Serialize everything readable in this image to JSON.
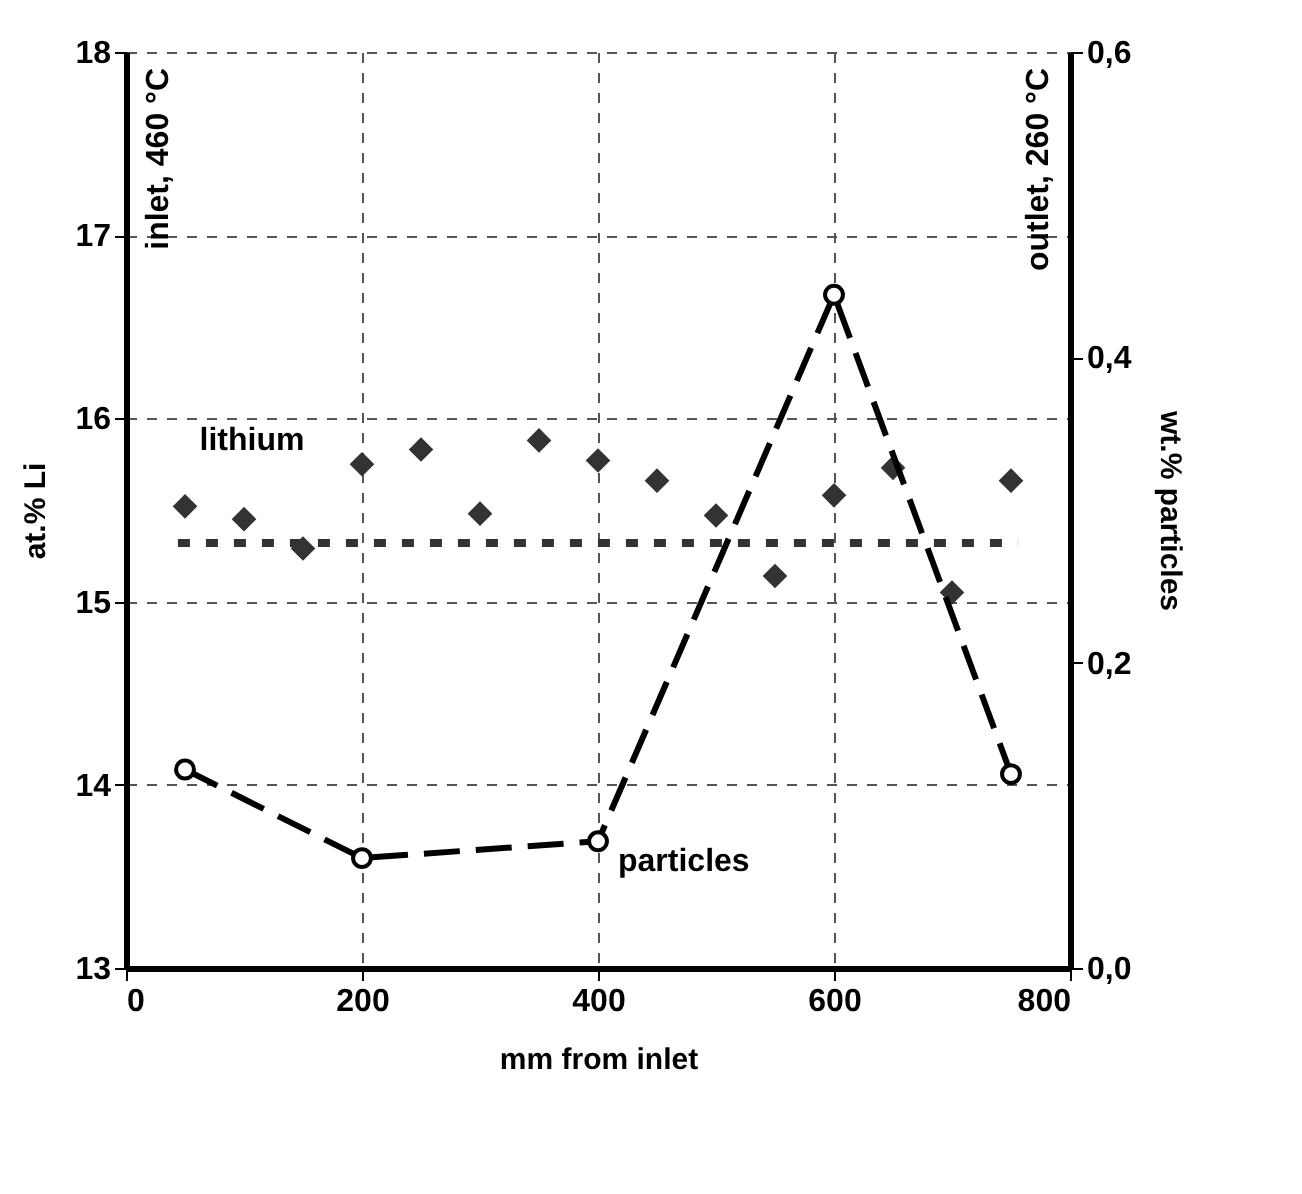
{
  "chart_data": {
    "type": "scatter",
    "xlabel": "mm from inlet",
    "ylabel": "at.% Li",
    "y2label": "wt.% particles",
    "xlim": [
      0,
      800
    ],
    "xticks": [
      0,
      200,
      400,
      600,
      800
    ],
    "ylim": [
      13,
      18
    ],
    "yticks": [
      13,
      14,
      15,
      16,
      17,
      18
    ],
    "y2lim": [
      0,
      0.6
    ],
    "y2ticks": [
      {
        "value": 0,
        "label": "0,0"
      },
      {
        "value": 0.2,
        "label": "0,2"
      },
      {
        "value": 0.4,
        "label": "0,4"
      },
      {
        "value": 0.6,
        "label": "0,6"
      }
    ],
    "grid": true,
    "series": [
      {
        "name": "lithium",
        "marker": "diamond",
        "color": "#333333",
        "x": [
          50,
          100,
          150,
          200,
          250,
          300,
          350,
          400,
          450,
          500,
          550,
          600,
          650,
          700,
          750
        ],
        "values": [
          15.52,
          15.45,
          15.29,
          15.75,
          15.83,
          15.48,
          15.88,
          15.77,
          15.66,
          15.47,
          15.14,
          15.58,
          15.73,
          15.05,
          15.66
        ]
      },
      {
        "name": "particles",
        "type": "line",
        "axis": "y2",
        "marker": "circle",
        "line_style": "dashed",
        "color": "#000000",
        "x": [
          50,
          200,
          400,
          600,
          750
        ],
        "values": [
          0.13,
          0.072,
          0.083,
          0.441,
          0.127
        ]
      }
    ],
    "ref_lines": [
      {
        "axis": "y",
        "value": 15.32,
        "line_style": "dotted",
        "color": "#333333"
      }
    ],
    "annotations": [
      "inlet, 460 °C",
      "outlet, 260 °C"
    ]
  }
}
